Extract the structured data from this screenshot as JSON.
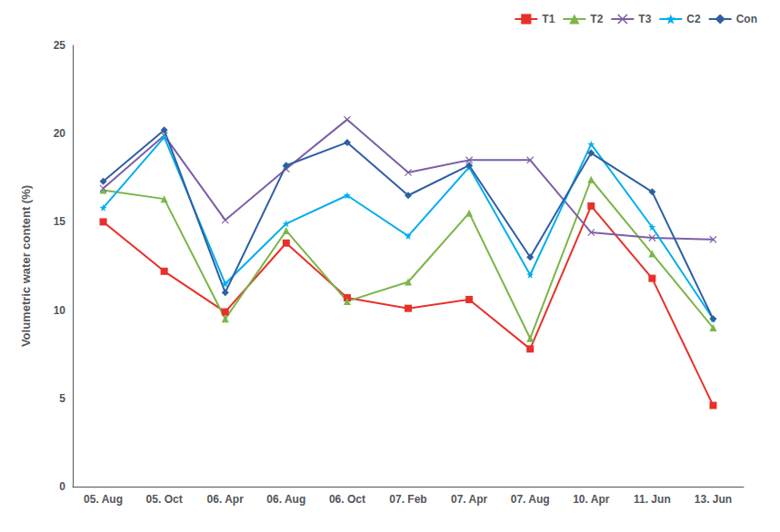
{
  "chart_data": {
    "type": "line",
    "categories": [
      "05. Aug",
      "05. Oct",
      "06. Apr",
      "06. Aug",
      "06. Oct",
      "07. Feb",
      "07. Apr",
      "07. Aug",
      "10. Apr",
      "11. Jun",
      "13. Jun"
    ],
    "series": [
      {
        "name": "T1",
        "color": "#e8302a",
        "marker": "square",
        "line_style": "solid",
        "values": [
          15.0,
          12.2,
          9.9,
          13.8,
          10.7,
          10.1,
          10.6,
          7.8,
          15.9,
          11.8,
          4.6
        ]
      },
      {
        "name": "T2",
        "color": "#7ab648",
        "marker": "triangle",
        "line_style": "solid",
        "values": [
          16.8,
          16.3,
          9.5,
          14.5,
          10.5,
          11.6,
          15.5,
          8.4,
          17.4,
          13.2,
          9.0
        ]
      },
      {
        "name": "T3",
        "color": "#7b5ea7",
        "marker": "x",
        "line_style": "solid",
        "values": [
          16.9,
          19.9,
          15.1,
          18.0,
          20.8,
          17.8,
          18.5,
          18.5,
          14.4,
          14.1,
          14.0
        ]
      },
      {
        "name": "C2",
        "color": "#00aeef",
        "marker": "star",
        "line_style": "solid",
        "values": [
          15.8,
          19.8,
          11.5,
          14.9,
          16.5,
          14.2,
          18.1,
          12.0,
          19.4,
          14.7,
          9.5
        ]
      },
      {
        "name": "Con",
        "color": "#2e5fa3",
        "marker": "diamond",
        "line_style": "solid",
        "values": [
          17.3,
          20.2,
          11.0,
          18.2,
          19.5,
          16.5,
          18.2,
          13.0,
          18.9,
          16.7,
          9.5
        ]
      }
    ],
    "ylabel": "Volumetric water content (%)",
    "ylim": [
      0,
      25
    ],
    "yticks": [
      0,
      5,
      10,
      15,
      20,
      25
    ],
    "grid": false,
    "legend": "upper right"
  }
}
